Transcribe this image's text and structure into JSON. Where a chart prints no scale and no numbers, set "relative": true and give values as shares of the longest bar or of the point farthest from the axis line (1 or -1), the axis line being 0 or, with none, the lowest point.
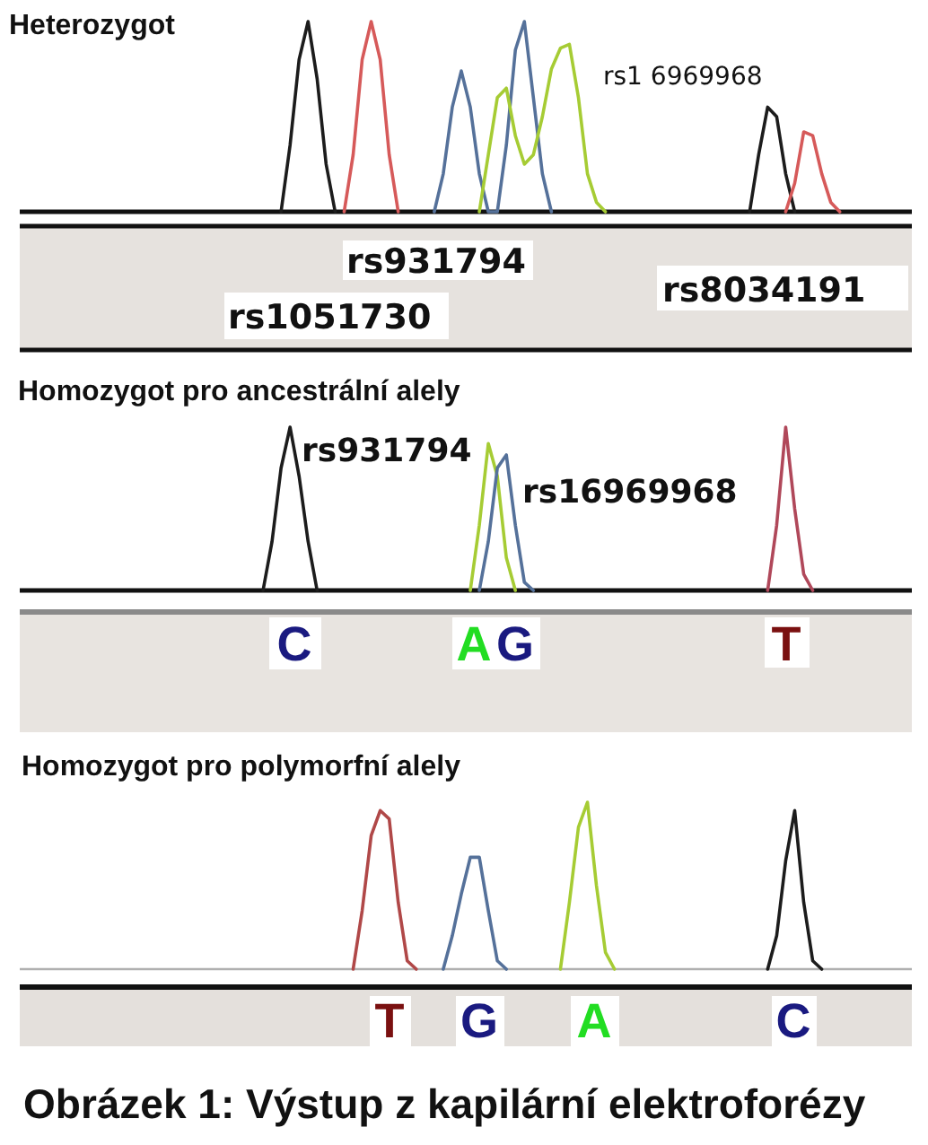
{
  "chart_data": [
    {
      "type": "line",
      "title": "Heterozygot",
      "relative": true,
      "categories": [
        null,
        null,
        null,
        null,
        null,
        null,
        null,
        null,
        null,
        null,
        null,
        null,
        null,
        null,
        null,
        null,
        null,
        null,
        null,
        null,
        null,
        null,
        null,
        null,
        null,
        null,
        null,
        null,
        null,
        null,
        null,
        null,
        null,
        null,
        null,
        null,
        null,
        null,
        null,
        null,
        null,
        null,
        null,
        null,
        null,
        null,
        null,
        null,
        null,
        null,
        null,
        null,
        null,
        null,
        null,
        null,
        null,
        null,
        null,
        null,
        null,
        null,
        null,
        null,
        null,
        null,
        null,
        null,
        null,
        null,
        null,
        null,
        null,
        null,
        null,
        null,
        null,
        null,
        null,
        null,
        null,
        null,
        null,
        null,
        null,
        null,
        null,
        null,
        null,
        null,
        null,
        null,
        null,
        null,
        null,
        null,
        null,
        null,
        null,
        null
      ],
      "series": [
        {
          "color": "#1c1c1c",
          "values": [
            null,
            null,
            null,
            null,
            null,
            null,
            null,
            null,
            null,
            null,
            null,
            null,
            null,
            null,
            null,
            null,
            null,
            null,
            null,
            null,
            null,
            null,
            null,
            null,
            null,
            null,
            null,
            null,
            null,
            0,
            0.35,
            0.8,
            1,
            0.7,
            0.25,
            0,
            null,
            null,
            null,
            null,
            null,
            null,
            null,
            null,
            null,
            null,
            null,
            null,
            null,
            null,
            null,
            null,
            null,
            null,
            null,
            null,
            null,
            null,
            null,
            null,
            null,
            null,
            null,
            null,
            null,
            null,
            null,
            null,
            null,
            null,
            null,
            null,
            null,
            null,
            null,
            null,
            null,
            null,
            null,
            null,
            null,
            0,
            0.3,
            0.55,
            0.5,
            0.2,
            0,
            null,
            null,
            null,
            null,
            null,
            null,
            null,
            null,
            null,
            null,
            null,
            null,
            null
          ]
        },
        {
          "color": "#d65a5a",
          "values": [
            null,
            null,
            null,
            null,
            null,
            null,
            null,
            null,
            null,
            null,
            null,
            null,
            null,
            null,
            null,
            null,
            null,
            null,
            null,
            null,
            null,
            null,
            null,
            null,
            null,
            null,
            null,
            null,
            null,
            null,
            null,
            null,
            null,
            null,
            null,
            null,
            0,
            0.3,
            0.8,
            1,
            0.8,
            0.3,
            0,
            null,
            null,
            null,
            null,
            null,
            null,
            null,
            null,
            null,
            null,
            null,
            null,
            null,
            null,
            null,
            null,
            null,
            null,
            null,
            null,
            null,
            null,
            null,
            null,
            null,
            null,
            null,
            null,
            null,
            null,
            null,
            null,
            null,
            null,
            null,
            null,
            null,
            null,
            null,
            null,
            null,
            null,
            0,
            0.15,
            0.42,
            0.4,
            0.2,
            0.05,
            0,
            null,
            null,
            null,
            null,
            null,
            null,
            null,
            null
          ]
        },
        {
          "color": "#55719a",
          "values": [
            null,
            null,
            null,
            null,
            null,
            null,
            null,
            null,
            null,
            null,
            null,
            null,
            null,
            null,
            null,
            null,
            null,
            null,
            null,
            null,
            null,
            null,
            null,
            null,
            null,
            null,
            null,
            null,
            null,
            null,
            null,
            null,
            null,
            null,
            null,
            null,
            null,
            null,
            null,
            null,
            null,
            null,
            null,
            null,
            null,
            null,
            0,
            0.2,
            0.55,
            0.74,
            0.55,
            0.2,
            0,
            0,
            0.35,
            0.85,
            1,
            0.6,
            0.2,
            0,
            null,
            null,
            null,
            null,
            null,
            null,
            null,
            null,
            null,
            null,
            null,
            null,
            null,
            null,
            null,
            null,
            null,
            null,
            null,
            null,
            null,
            null,
            null,
            null,
            null,
            null,
            null,
            null,
            null,
            null,
            null,
            null,
            null,
            null,
            null,
            null,
            null,
            null,
            null,
            null
          ]
        },
        {
          "color": "#a6cc34",
          "values": [
            null,
            null,
            null,
            null,
            null,
            null,
            null,
            null,
            null,
            null,
            null,
            null,
            null,
            null,
            null,
            null,
            null,
            null,
            null,
            null,
            null,
            null,
            null,
            null,
            null,
            null,
            null,
            null,
            null,
            null,
            null,
            null,
            null,
            null,
            null,
            null,
            null,
            null,
            null,
            null,
            null,
            null,
            null,
            null,
            null,
            null,
            null,
            null,
            null,
            null,
            null,
            0,
            0.3,
            0.6,
            0.65,
            0.4,
            0.25,
            0.3,
            0.5,
            0.75,
            0.86,
            0.88,
            0.6,
            0.2,
            0.05,
            0,
            null,
            null,
            null,
            null,
            null,
            null,
            null,
            null,
            null,
            null,
            null,
            null,
            null,
            null,
            null,
            null,
            null,
            null,
            null,
            null,
            null,
            null,
            null,
            null,
            null,
            null,
            null,
            null,
            null,
            null,
            null,
            null,
            null,
            null
          ]
        }
      ],
      "annotations": [
        "rs1 6969968",
        "rs931794",
        "rs1051730",
        "rs8034191"
      ]
    },
    {
      "type": "line",
      "title": "Homozygot pro ancestrální alely",
      "relative": true,
      "categories": [
        null,
        null,
        null,
        null,
        null,
        null,
        null,
        null,
        null,
        null,
        null,
        null,
        null,
        null,
        null,
        null,
        null,
        null,
        null,
        null,
        null,
        null,
        null,
        null,
        null,
        null,
        null,
        null,
        null,
        null,
        null,
        null,
        null,
        null,
        null,
        null,
        null,
        null,
        null,
        null,
        null,
        null,
        null,
        null,
        null,
        null,
        null,
        null,
        null,
        null,
        null,
        null,
        null,
        null,
        null,
        null,
        null,
        null,
        null,
        null,
        null,
        null,
        null,
        null,
        null,
        null,
        null,
        null,
        null,
        null,
        null,
        null,
        null,
        null,
        null,
        null,
        null,
        null,
        null,
        null,
        null,
        null,
        null,
        null,
        null,
        null,
        null,
        null,
        null,
        null,
        null,
        null,
        null,
        null,
        null,
        null,
        null,
        null,
        null,
        null
      ],
      "series": [
        {
          "color": "#1c1c1c",
          "values": [
            null,
            null,
            null,
            null,
            null,
            null,
            null,
            null,
            null,
            null,
            null,
            null,
            null,
            null,
            null,
            null,
            null,
            null,
            null,
            null,
            null,
            null,
            null,
            null,
            null,
            null,
            null,
            0,
            0.3,
            0.75,
            1,
            0.7,
            0.3,
            0,
            null,
            null,
            null,
            null,
            null,
            null,
            null,
            null,
            null,
            null,
            null,
            null,
            null,
            null,
            null,
            null,
            null,
            null,
            null,
            null,
            null,
            null,
            null,
            null,
            null,
            null,
            null,
            null,
            null,
            null,
            null,
            null,
            null,
            null,
            null,
            null,
            null,
            null,
            null,
            null,
            null,
            null,
            null,
            null,
            null,
            null,
            null,
            null,
            null,
            null,
            null,
            null,
            null,
            null,
            null,
            null,
            null,
            null,
            null,
            null,
            null,
            null,
            null,
            null,
            null,
            null
          ]
        },
        {
          "color": "#a6cc34",
          "values": [
            null,
            null,
            null,
            null,
            null,
            null,
            null,
            null,
            null,
            null,
            null,
            null,
            null,
            null,
            null,
            null,
            null,
            null,
            null,
            null,
            null,
            null,
            null,
            null,
            null,
            null,
            null,
            null,
            null,
            null,
            null,
            null,
            null,
            null,
            null,
            null,
            null,
            null,
            null,
            null,
            null,
            null,
            null,
            null,
            null,
            null,
            null,
            null,
            null,
            null,
            0,
            0.4,
            0.9,
            0.7,
            0.2,
            0,
            null,
            null,
            null,
            null,
            null,
            null,
            null,
            null,
            null,
            null,
            null,
            null,
            null,
            null,
            null,
            null,
            null,
            null,
            null,
            null,
            null,
            null,
            null,
            null,
            null,
            null,
            null,
            null,
            null,
            null,
            null,
            null,
            null,
            null,
            null,
            null,
            null,
            null,
            null,
            null,
            null,
            null,
            null,
            null
          ]
        },
        {
          "color": "#55719a",
          "values": [
            null,
            null,
            null,
            null,
            null,
            null,
            null,
            null,
            null,
            null,
            null,
            null,
            null,
            null,
            null,
            null,
            null,
            null,
            null,
            null,
            null,
            null,
            null,
            null,
            null,
            null,
            null,
            null,
            null,
            null,
            null,
            null,
            null,
            null,
            null,
            null,
            null,
            null,
            null,
            null,
            null,
            null,
            null,
            null,
            null,
            null,
            null,
            null,
            null,
            null,
            null,
            0,
            0.3,
            0.75,
            0.83,
            0.4,
            0.05,
            0,
            null,
            null,
            null,
            null,
            null,
            null,
            null,
            null,
            null,
            null,
            null,
            null,
            null,
            null,
            null,
            null,
            null,
            null,
            null,
            null,
            null,
            null,
            null,
            null,
            null,
            null,
            null,
            null,
            null,
            null,
            null,
            null,
            null,
            null,
            null,
            null,
            null,
            null,
            null,
            null,
            null,
            null
          ]
        },
        {
          "color": "#b0485a",
          "values": [
            null,
            null,
            null,
            null,
            null,
            null,
            null,
            null,
            null,
            null,
            null,
            null,
            null,
            null,
            null,
            null,
            null,
            null,
            null,
            null,
            null,
            null,
            null,
            null,
            null,
            null,
            null,
            null,
            null,
            null,
            null,
            null,
            null,
            null,
            null,
            null,
            null,
            null,
            null,
            null,
            null,
            null,
            null,
            null,
            null,
            null,
            null,
            null,
            null,
            null,
            null,
            null,
            null,
            null,
            null,
            null,
            null,
            null,
            null,
            null,
            null,
            null,
            null,
            null,
            null,
            null,
            null,
            null,
            null,
            null,
            null,
            null,
            null,
            null,
            null,
            null,
            null,
            null,
            null,
            null,
            null,
            null,
            null,
            0,
            0.4,
            1,
            0.5,
            0.1,
            0,
            null,
            null,
            null,
            null,
            null,
            null,
            null,
            null,
            null,
            null,
            null
          ]
        }
      ],
      "annotations": [
        "rs931794",
        "rs16969968",
        "C",
        "A",
        "G",
        "T"
      ]
    },
    {
      "type": "line",
      "title": "Homozygot pro polymorfní alely",
      "relative": true,
      "categories": [
        null,
        null,
        null,
        null,
        null,
        null,
        null,
        null,
        null,
        null,
        null,
        null,
        null,
        null,
        null,
        null,
        null,
        null,
        null,
        null,
        null,
        null,
        null,
        null,
        null,
        null,
        null,
        null,
        null,
        null,
        null,
        null,
        null,
        null,
        null,
        null,
        null,
        null,
        null,
        null,
        null,
        null,
        null,
        null,
        null,
        null,
        null,
        null,
        null,
        null,
        null,
        null,
        null,
        null,
        null,
        null,
        null,
        null,
        null,
        null,
        null,
        null,
        null,
        null,
        null,
        null,
        null,
        null,
        null,
        null,
        null,
        null,
        null,
        null,
        null,
        null,
        null,
        null,
        null,
        null,
        null,
        null,
        null,
        null,
        null,
        null,
        null,
        null,
        null,
        null,
        null,
        null,
        null,
        null,
        null,
        null,
        null,
        null,
        null,
        null
      ],
      "series": [
        {
          "color": "#b04848",
          "values": [
            null,
            null,
            null,
            null,
            null,
            null,
            null,
            null,
            null,
            null,
            null,
            null,
            null,
            null,
            null,
            null,
            null,
            null,
            null,
            null,
            null,
            null,
            null,
            null,
            null,
            null,
            null,
            null,
            null,
            null,
            null,
            null,
            null,
            null,
            null,
            null,
            null,
            0,
            0.35,
            0.8,
            0.95,
            0.9,
            0.4,
            0.05,
            0,
            null,
            null,
            null,
            null,
            null,
            null,
            null,
            null,
            null,
            null,
            null,
            null,
            null,
            null,
            null,
            null,
            null,
            null,
            null,
            null,
            null,
            null,
            null,
            null,
            null,
            null,
            null,
            null,
            null,
            null,
            null,
            null,
            null,
            null,
            null,
            null,
            null,
            null,
            null,
            null,
            null,
            null,
            null,
            null,
            null,
            null,
            null,
            null,
            null,
            null,
            null,
            null,
            null,
            null,
            null
          ]
        },
        {
          "color": "#55719a",
          "values": [
            null,
            null,
            null,
            null,
            null,
            null,
            null,
            null,
            null,
            null,
            null,
            null,
            null,
            null,
            null,
            null,
            null,
            null,
            null,
            null,
            null,
            null,
            null,
            null,
            null,
            null,
            null,
            null,
            null,
            null,
            null,
            null,
            null,
            null,
            null,
            null,
            null,
            null,
            null,
            null,
            null,
            null,
            null,
            null,
            null,
            null,
            null,
            0,
            0.2,
            0.45,
            0.67,
            0.67,
            0.35,
            0.05,
            0,
            null,
            null,
            null,
            null,
            null,
            null,
            null,
            null,
            null,
            null,
            null,
            null,
            null,
            null,
            null,
            null,
            null,
            null,
            null,
            null,
            null,
            null,
            null,
            null,
            null,
            null,
            null,
            null,
            null,
            null,
            null,
            null,
            null,
            null,
            null,
            null,
            null,
            null,
            null,
            null,
            null,
            null,
            null,
            null,
            null
          ]
        },
        {
          "color": "#a6cc34",
          "values": [
            null,
            null,
            null,
            null,
            null,
            null,
            null,
            null,
            null,
            null,
            null,
            null,
            null,
            null,
            null,
            null,
            null,
            null,
            null,
            null,
            null,
            null,
            null,
            null,
            null,
            null,
            null,
            null,
            null,
            null,
            null,
            null,
            null,
            null,
            null,
            null,
            null,
            null,
            null,
            null,
            null,
            null,
            null,
            null,
            null,
            null,
            null,
            null,
            null,
            null,
            null,
            null,
            null,
            null,
            null,
            null,
            null,
            null,
            null,
            null,
            0,
            0.4,
            0.85,
            1,
            0.5,
            0.1,
            0,
            null,
            null,
            null,
            null,
            null,
            null,
            null,
            null,
            null,
            null,
            null,
            null,
            null,
            null,
            null,
            null,
            null,
            null,
            null,
            null,
            null,
            null,
            null,
            null,
            null,
            null,
            null,
            null,
            null,
            null,
            null,
            null,
            null
          ]
        },
        {
          "color": "#1c1c1c",
          "values": [
            null,
            null,
            null,
            null,
            null,
            null,
            null,
            null,
            null,
            null,
            null,
            null,
            null,
            null,
            null,
            null,
            null,
            null,
            null,
            null,
            null,
            null,
            null,
            null,
            null,
            null,
            null,
            null,
            null,
            null,
            null,
            null,
            null,
            null,
            null,
            null,
            null,
            null,
            null,
            null,
            null,
            null,
            null,
            null,
            null,
            null,
            null,
            null,
            null,
            null,
            null,
            null,
            null,
            null,
            null,
            null,
            null,
            null,
            null,
            null,
            null,
            null,
            null,
            null,
            null,
            null,
            null,
            null,
            null,
            null,
            null,
            null,
            null,
            null,
            null,
            null,
            null,
            null,
            null,
            null,
            null,
            null,
            null,
            0,
            0.2,
            0.65,
            0.95,
            0.4,
            0.05,
            0,
            null,
            null,
            null,
            null,
            null,
            null,
            null,
            null,
            null,
            null
          ]
        }
      ],
      "annotations": [
        "T",
        "G",
        "A",
        "C",
        "Obrázek 1: Výstup z kapilární elektroforézy"
      ]
    }
  ]
}
